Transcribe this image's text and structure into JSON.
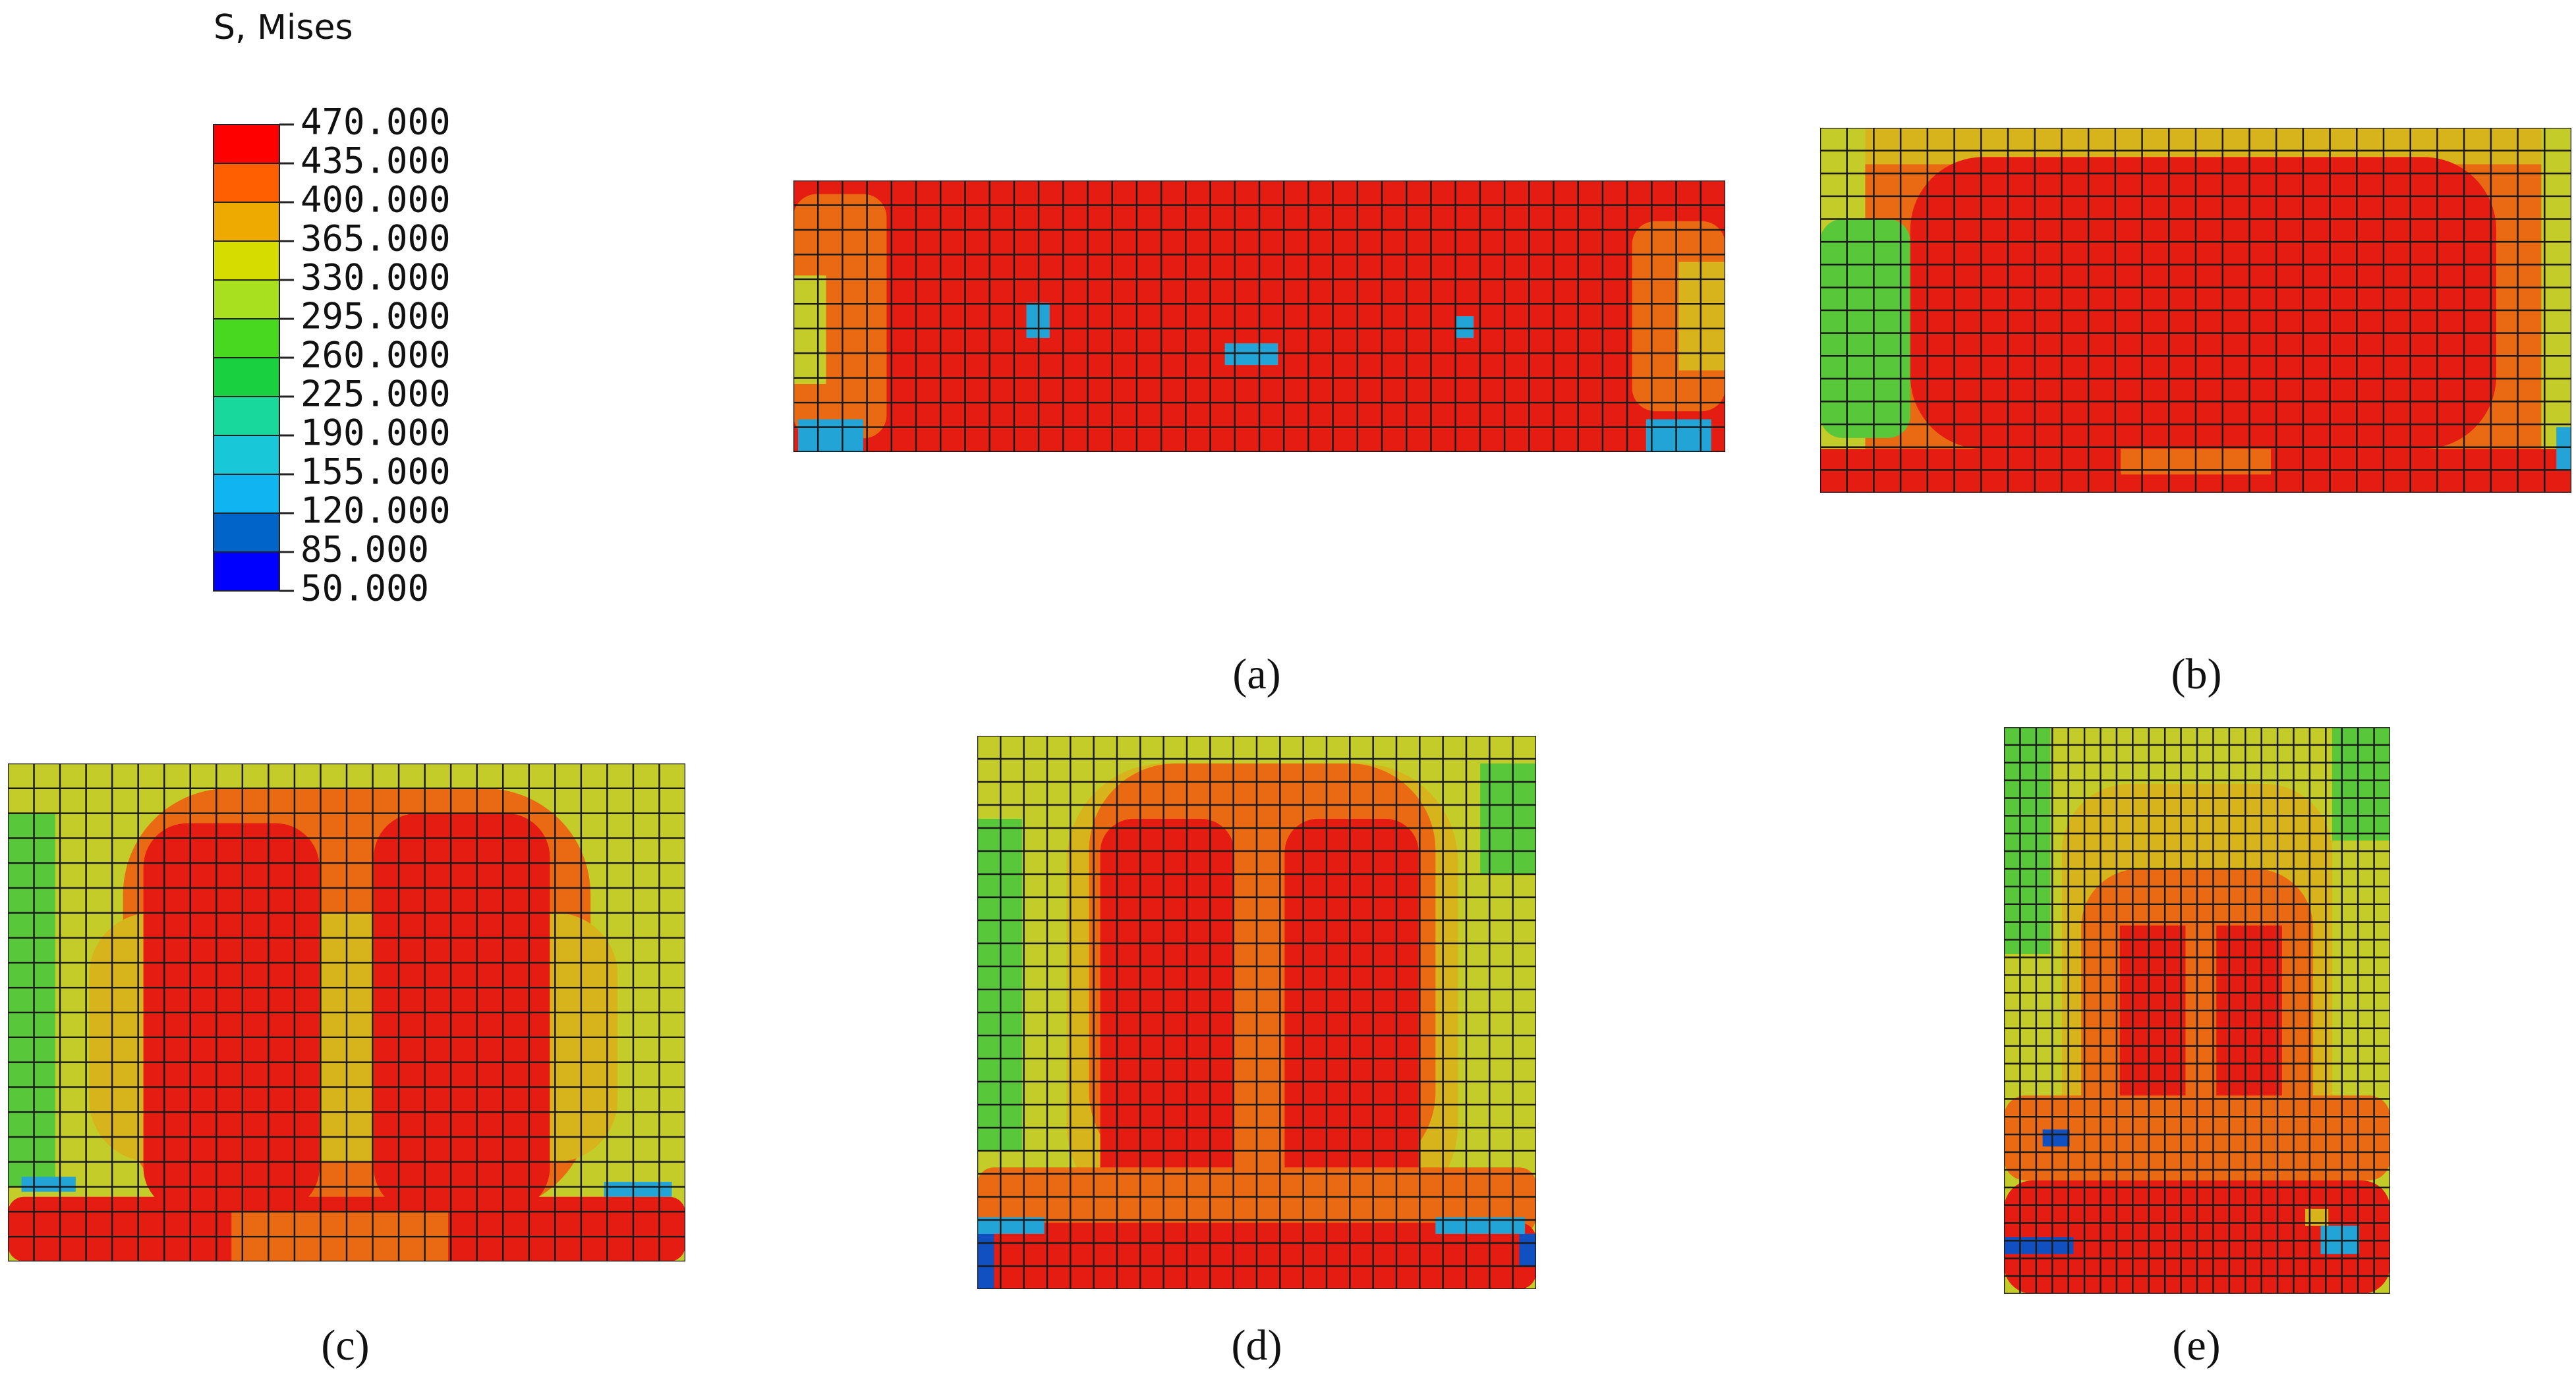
{
  "legend": {
    "title": "S, Mises",
    "levels": [
      {
        "value": 470,
        "label": "470.000"
      },
      {
        "value": 435,
        "label": "435.000"
      },
      {
        "value": 400,
        "label": "400.000"
      },
      {
        "value": 365,
        "label": "365.000"
      },
      {
        "value": 330,
        "label": "330.000"
      },
      {
        "value": 295,
        "label": "295.000"
      },
      {
        "value": 260,
        "label": "260.000"
      },
      {
        "value": 225,
        "label": "225.000"
      },
      {
        "value": 190,
        "label": "190.000"
      },
      {
        "value": 155,
        "label": "155.000"
      },
      {
        "value": 120,
        "label": "120.000"
      },
      {
        "value": 85,
        "label": "85.000"
      },
      {
        "value": 50,
        "label": "50.000"
      }
    ],
    "colors": [
      "#ff0000",
      "#ff5f00",
      "#eeaa00",
      "#d6dc00",
      "#a8e020",
      "#48d820",
      "#18d040",
      "#18d89c",
      "#18c8d8",
      "#10b4f0",
      "#0064c8",
      "#0000ff"
    ]
  },
  "panels": [
    {
      "caption": "(a)"
    },
    {
      "caption": "(b)"
    },
    {
      "caption": "(c)"
    },
    {
      "caption": "(d)"
    },
    {
      "caption": "(e)"
    }
  ]
}
